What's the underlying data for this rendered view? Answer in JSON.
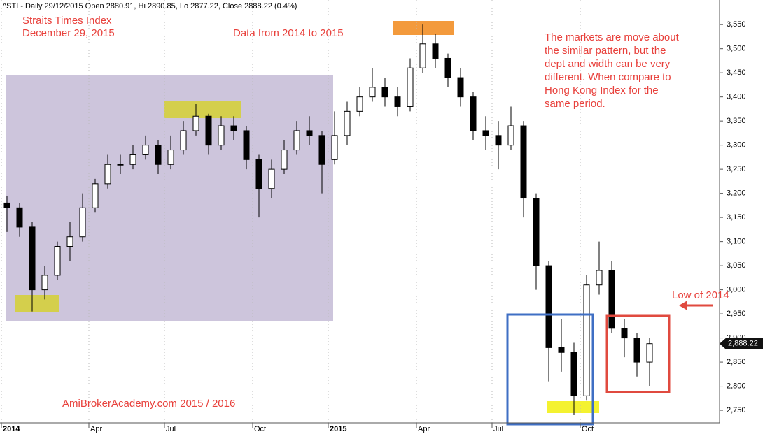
{
  "chart_data": {
    "type": "candlestick",
    "title": "^STI - Daily 29/12/2015 Open 2880.91, Hi 2890.85, Lo 2877.22, Close 2888.22 (0.4%)",
    "annotations": [
      "Straits Times Index",
      "December 29, 2015",
      "Data from 2014 to 2015",
      "Low of 2014",
      "AmiBrokerAcademy.com 2015  / 2016"
    ],
    "note_lines": [
      "The markets are move about",
      "the similar pattern, but the",
      "dept and width can be very",
      "different. When compare to",
      "Hong Kong Index for the",
      "same period."
    ],
    "categories": [
      "2014",
      null,
      null,
      null,
      null,
      null,
      null,
      "Apr",
      null,
      null,
      null,
      null,
      null,
      "Jul",
      null,
      null,
      null,
      null,
      null,
      null,
      "Oct",
      null,
      null,
      null,
      null,
      null,
      "2015",
      null,
      null,
      null,
      null,
      null,
      null,
      "Apr",
      null,
      null,
      null,
      null,
      null,
      "Jul",
      null,
      null,
      null,
      null,
      null,
      null,
      "Oct",
      null,
      null,
      null,
      null,
      null
    ],
    "open": [
      3180,
      3170,
      3130,
      3000,
      3030,
      3090,
      3110,
      3170,
      3220,
      3260,
      3260,
      3280,
      3300,
      3260,
      3290,
      3330,
      3360,
      3300,
      3340,
      3330,
      3270,
      3210,
      3250,
      3290,
      3330,
      3320,
      3270,
      3320,
      3370,
      3400,
      3420,
      3400,
      3380,
      3460,
      3510,
      3480,
      3440,
      3400,
      3330,
      3320,
      3300,
      3340,
      3190,
      3050,
      2880,
      2870,
      2780,
      3010,
      3040,
      2920,
      2900,
      2850
    ],
    "high": [
      3195,
      3180,
      3140,
      3050,
      3100,
      3140,
      3200,
      3230,
      3280,
      3280,
      3300,
      3320,
      3310,
      3320,
      3350,
      3385,
      3365,
      3360,
      3360,
      3340,
      3280,
      3270,
      3310,
      3350,
      3360,
      3330,
      3370,
      3390,
      3420,
      3460,
      3440,
      3420,
      3480,
      3550,
      3530,
      3490,
      3460,
      3410,
      3360,
      3350,
      3380,
      3350,
      3200,
      3060,
      2940,
      2890,
      3030,
      3100,
      3060,
      2940,
      2910,
      2900
    ],
    "low": [
      3120,
      3110,
      2955,
      2980,
      3020,
      3060,
      3100,
      3160,
      3210,
      3240,
      3250,
      3270,
      3240,
      3250,
      3280,
      3320,
      3280,
      3290,
      3310,
      3250,
      3150,
      3190,
      3240,
      3280,
      3300,
      3200,
      3260,
      3300,
      3360,
      3390,
      3380,
      3360,
      3370,
      3450,
      3460,
      3420,
      3380,
      3310,
      3290,
      3250,
      3290,
      3150,
      3000,
      2810,
      2830,
      2740,
      2770,
      2990,
      2910,
      2860,
      2820,
      2800
    ],
    "close": [
      3170,
      3130,
      3000,
      3030,
      3090,
      3110,
      3170,
      3220,
      3260,
      3260,
      3280,
      3300,
      3260,
      3290,
      3330,
      3360,
      3300,
      3340,
      3330,
      3270,
      3210,
      3250,
      3290,
      3330,
      3320,
      3260,
      3320,
      3370,
      3400,
      3420,
      3400,
      3380,
      3460,
      3510,
      3480,
      3440,
      3400,
      3330,
      3320,
      3300,
      3340,
      3190,
      3050,
      2880,
      2870,
      2780,
      3010,
      3040,
      2920,
      2900,
      2850,
      2888.22
    ],
    "last_price": {
      "value": 2888.22,
      "label": "2,888.22"
    },
    "ylim": [
      2724,
      3601
    ],
    "yticks": [
      {
        "value": 2750,
        "label": "2,750"
      },
      {
        "value": 2800,
        "label": "2,800"
      },
      {
        "value": 2850,
        "label": "2,850"
      },
      {
        "value": 2900,
        "label": "2,900"
      },
      {
        "value": 2950,
        "label": "2,950"
      },
      {
        "value": 3000,
        "label": "3,000"
      },
      {
        "value": 3050,
        "label": "3,050"
      },
      {
        "value": 3100,
        "label": "3,100"
      },
      {
        "value": 3150,
        "label": "3,150"
      },
      {
        "value": 3200,
        "label": "3,200"
      },
      {
        "value": 3250,
        "label": "3,250"
      },
      {
        "value": 3300,
        "label": "3,300"
      },
      {
        "value": 3350,
        "label": "3,350"
      },
      {
        "value": 3400,
        "label": "3,400"
      },
      {
        "value": 3450,
        "label": "3,450"
      },
      {
        "value": 3500,
        "label": "3,500"
      },
      {
        "value": 3550,
        "label": "3,550"
      }
    ],
    "up_color": "#ffffff",
    "down_color": "#000000",
    "grid": true
  }
}
